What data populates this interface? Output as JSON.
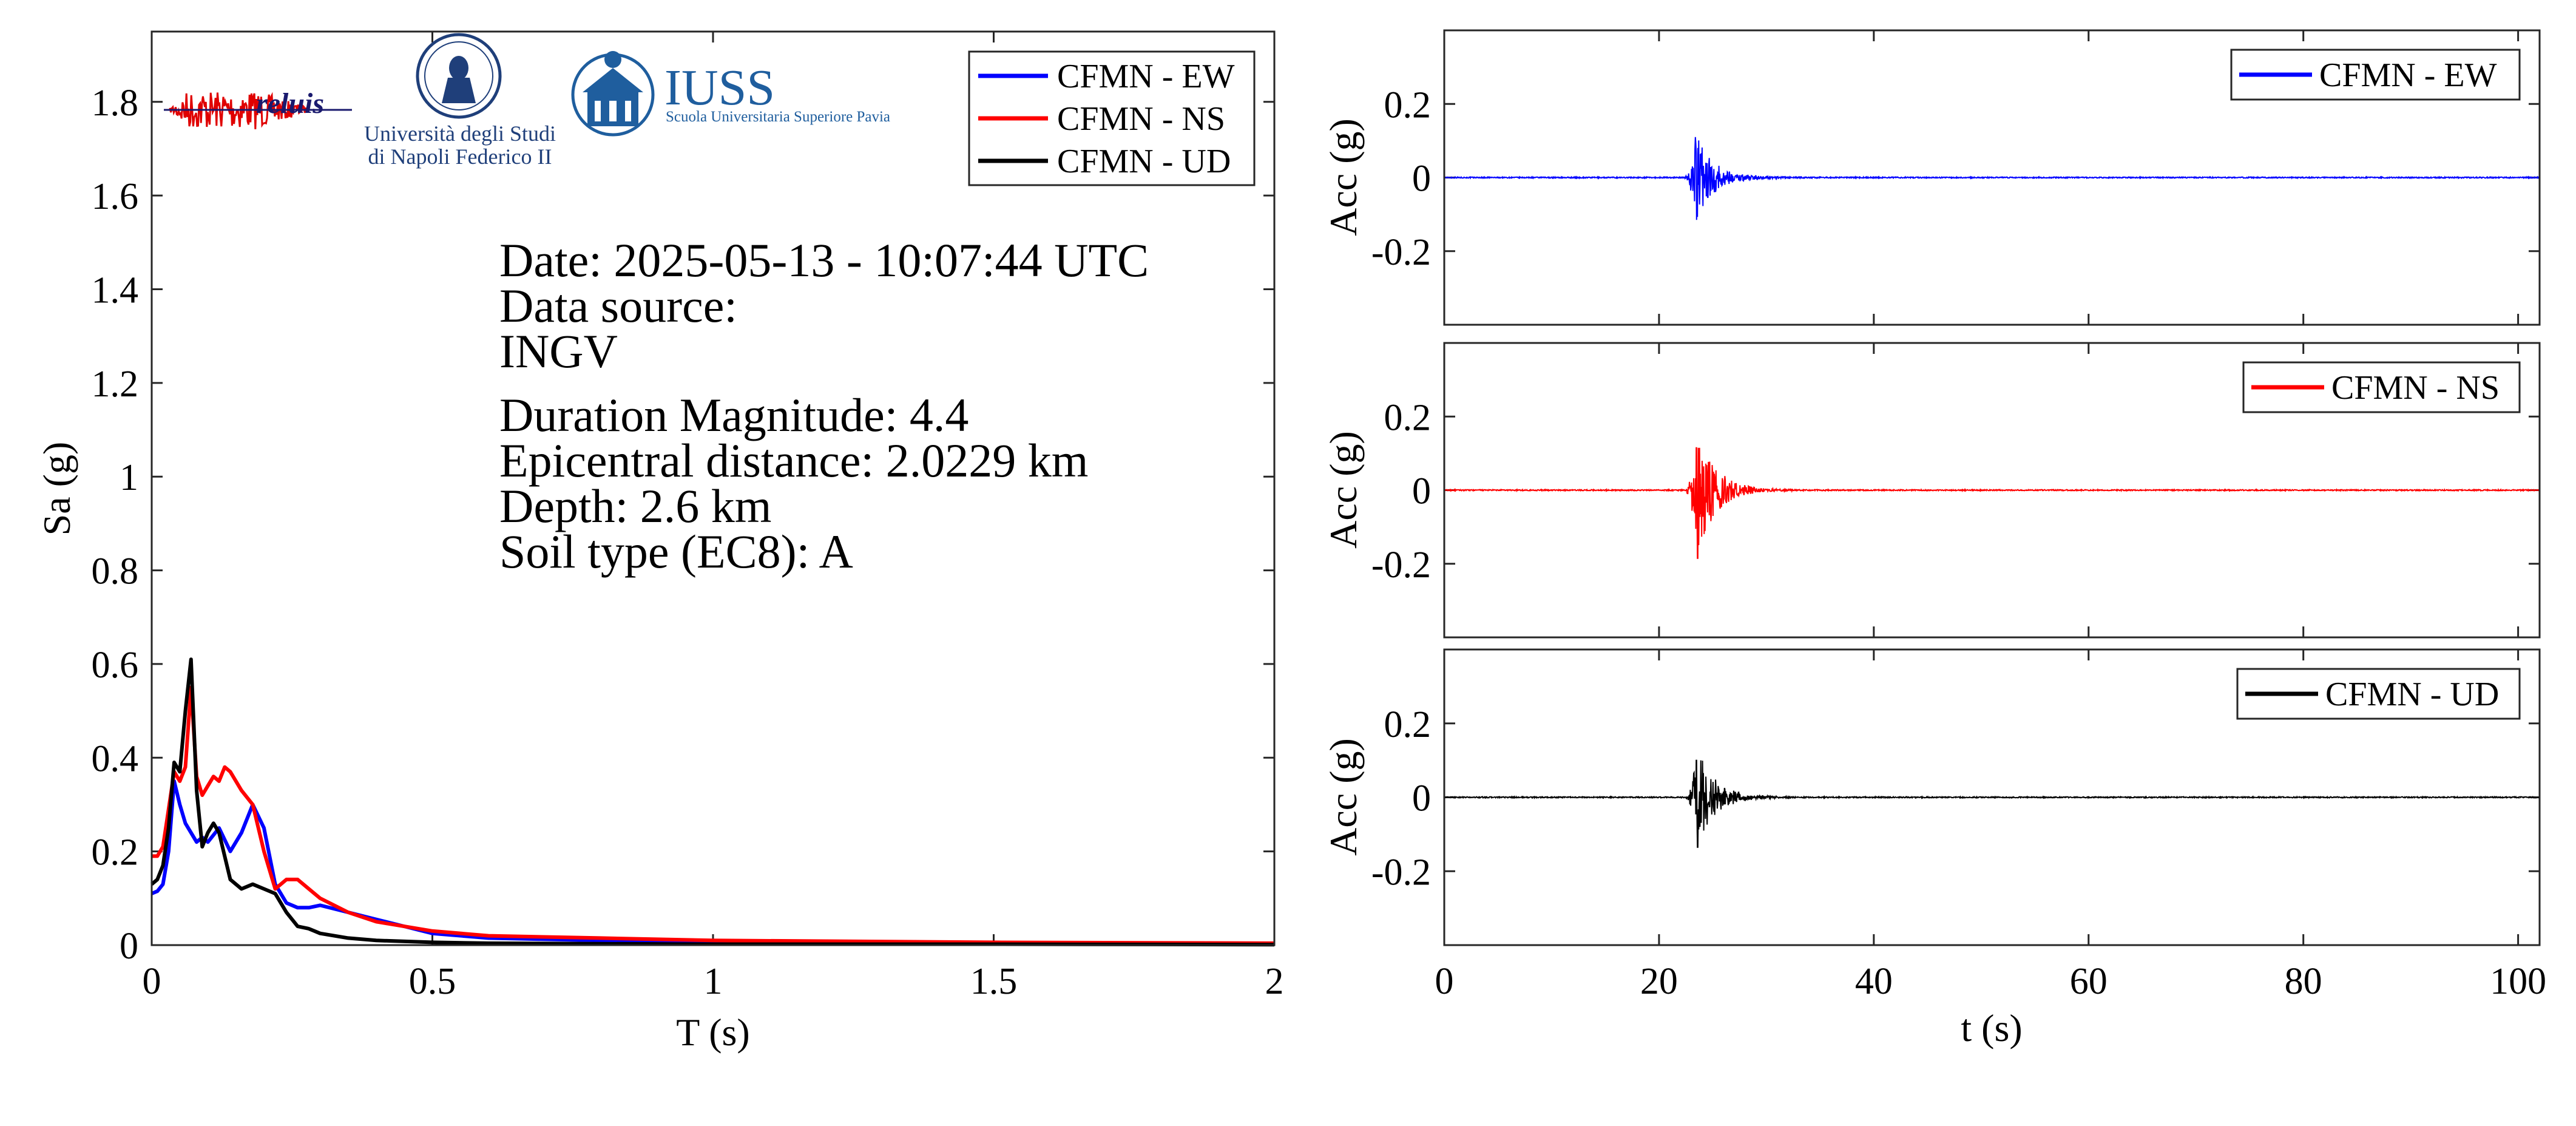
{
  "colors": {
    "ew": "#0000ff",
    "ns": "#ff0000",
    "ud": "#000000"
  },
  "logos": {
    "reluis": "reluis",
    "unina_line1": "Università degli Studi",
    "unina_line2": "di Napoli Federico II",
    "iuss_title": "IUSS",
    "iuss_subtitle": "Scuola Universitaria Superiore Pavia",
    "unina_icon": "university-seal-icon",
    "iuss_icon": "iuss-building-icon"
  },
  "info": {
    "date": "Date: 2025-05-13 - 10:07:44 UTC",
    "source_label": "Data source:",
    "source": "INGV",
    "magnitude": "Duration Magnitude: 4.4",
    "distance": "Epicentral distance: 2.0229 km",
    "depth": "Depth: 2.6 km",
    "soil": "Soil type (EC8): A"
  },
  "chart_data": [
    {
      "type": "line",
      "xlabel": "T (s)",
      "ylabel": "Sa (g)",
      "xlim": [
        0,
        2
      ],
      "ylim": [
        0,
        1.95
      ],
      "xticks": [
        0,
        0.5,
        1,
        1.5,
        2
      ],
      "xtick_labels": [
        "0",
        "0.5",
        "1",
        "1.5",
        "2"
      ],
      "yticks": [
        0,
        0.2,
        0.4,
        0.6,
        0.8,
        1,
        1.2,
        1.4,
        1.6,
        1.8
      ],
      "ytick_labels": [
        "0",
        "0.2",
        "0.4",
        "0.6",
        "0.8",
        "1",
        "1.2",
        "1.4",
        "1.6",
        "1.8"
      ],
      "legend_position": "top-right",
      "series": [
        {
          "name": "CFMN - EW",
          "color": "#0000ff",
          "x": [
            0,
            0.01,
            0.02,
            0.03,
            0.04,
            0.05,
            0.06,
            0.07,
            0.08,
            0.09,
            0.1,
            0.12,
            0.14,
            0.16,
            0.18,
            0.2,
            0.22,
            0.24,
            0.26,
            0.28,
            0.3,
            0.35,
            0.4,
            0.45,
            0.5,
            0.6,
            0.8,
            1,
            1.5,
            2
          ],
          "y": [
            0.11,
            0.115,
            0.13,
            0.2,
            0.35,
            0.3,
            0.26,
            0.24,
            0.22,
            0.23,
            0.22,
            0.25,
            0.2,
            0.24,
            0.3,
            0.25,
            0.13,
            0.09,
            0.08,
            0.08,
            0.085,
            0.07,
            0.055,
            0.04,
            0.025,
            0.015,
            0.01,
            0.007,
            0.004,
            0.003
          ]
        },
        {
          "name": "CFMN - NS",
          "color": "#ff0000",
          "x": [
            0,
            0.01,
            0.02,
            0.03,
            0.04,
            0.05,
            0.06,
            0.07,
            0.08,
            0.09,
            0.1,
            0.11,
            0.12,
            0.13,
            0.14,
            0.16,
            0.18,
            0.2,
            0.22,
            0.24,
            0.26,
            0.28,
            0.3,
            0.35,
            0.4,
            0.5,
            0.6,
            0.8,
            1,
            1.5,
            2
          ],
          "y": [
            0.19,
            0.19,
            0.21,
            0.29,
            0.37,
            0.35,
            0.38,
            0.55,
            0.36,
            0.32,
            0.34,
            0.36,
            0.35,
            0.38,
            0.37,
            0.33,
            0.3,
            0.2,
            0.12,
            0.14,
            0.14,
            0.12,
            0.1,
            0.07,
            0.05,
            0.03,
            0.02,
            0.015,
            0.01,
            0.006,
            0.004
          ]
        },
        {
          "name": "CFMN - UD",
          "color": "#000000",
          "x": [
            0,
            0.01,
            0.02,
            0.03,
            0.04,
            0.05,
            0.06,
            0.07,
            0.08,
            0.09,
            0.1,
            0.11,
            0.12,
            0.14,
            0.16,
            0.18,
            0.2,
            0.22,
            0.24,
            0.26,
            0.28,
            0.3,
            0.35,
            0.4,
            0.5,
            0.6,
            0.8,
            1,
            1.5,
            2
          ],
          "y": [
            0.13,
            0.14,
            0.17,
            0.25,
            0.39,
            0.37,
            0.5,
            0.61,
            0.33,
            0.21,
            0.24,
            0.26,
            0.24,
            0.14,
            0.12,
            0.13,
            0.12,
            0.11,
            0.07,
            0.04,
            0.035,
            0.025,
            0.015,
            0.01,
            0.006,
            0.004,
            0.003,
            0.002,
            0.002,
            0.001
          ]
        }
      ]
    },
    {
      "type": "line",
      "xlabel": "",
      "ylabel": "Acc (g)",
      "xlim": [
        0,
        102
      ],
      "ylim": [
        -0.4,
        0.4
      ],
      "yticks": [
        -0.2,
        0,
        0.2
      ],
      "ytick_labels": [
        "-0.2",
        "0",
        "0.2"
      ],
      "xticks": [
        0,
        20,
        40,
        60,
        80,
        100
      ],
      "legend_position": "top-right",
      "series": [
        {
          "name": "CFMN - EW",
          "color": "#0000ff",
          "peak_time": 23.5,
          "peak_pos": 0.11,
          "peak_neg": -0.115,
          "end_time": 32
        }
      ]
    },
    {
      "type": "line",
      "xlabel": "",
      "ylabel": "Acc (g)",
      "xlim": [
        0,
        102
      ],
      "ylim": [
        -0.4,
        0.4
      ],
      "yticks": [
        -0.2,
        0,
        0.2
      ],
      "ytick_labels": [
        "-0.2",
        "0",
        "0.2"
      ],
      "xticks": [
        0,
        20,
        40,
        60,
        80,
        100
      ],
      "legend_position": "top-right",
      "series": [
        {
          "name": "CFMN - NS",
          "color": "#ff0000",
          "peak_time": 23.6,
          "peak_pos": 0.115,
          "peak_neg": -0.185,
          "end_time": 32
        }
      ]
    },
    {
      "type": "line",
      "xlabel": "t (s)",
      "ylabel": "Acc (g)",
      "xlim": [
        0,
        102
      ],
      "ylim": [
        -0.4,
        0.4
      ],
      "yticks": [
        -0.2,
        0,
        0.2
      ],
      "ytick_labels": [
        "-0.2",
        "0",
        "0.2"
      ],
      "xticks": [
        0,
        20,
        40,
        60,
        80,
        100
      ],
      "xtick_labels": [
        "0",
        "20",
        "40",
        "60",
        "80",
        "100"
      ],
      "legend_position": "top-right",
      "series": [
        {
          "name": "CFMN - UD",
          "color": "#000000",
          "peak_time": 23.6,
          "peak_pos": 0.1,
          "peak_neg": -0.135,
          "end_time": 32
        }
      ]
    }
  ]
}
